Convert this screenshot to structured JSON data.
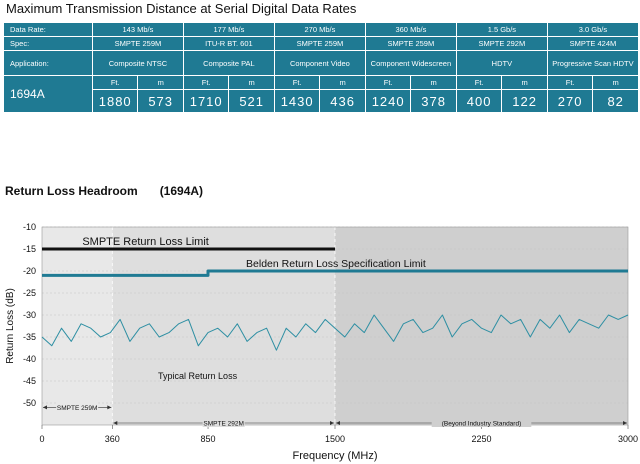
{
  "table": {
    "title": "Maximum Transmission Distance at Serial Digital Data Rates",
    "rows": [
      {
        "label": "Data Rate:",
        "cells": [
          "143 Mb/s",
          "177 Mb/s",
          "270 Mb/s",
          "360 Mb/s",
          "1.5 Gb/s",
          "3.0 Gb/s"
        ]
      },
      {
        "label": "Spec:",
        "cells": [
          "SMPTE 259M",
          "ITU-R BT. 601",
          "SMPTE 259M",
          "SMPTE 259M",
          "SMPTE 292M",
          "SMPTE 424M"
        ]
      },
      {
        "label": "Application:",
        "cells": [
          "Composite NTSC",
          "Composite PAL",
          "Component Video",
          "Component Widescreen",
          "HDTV",
          "Progressive Scan HDTV"
        ]
      }
    ],
    "units_row": [
      "Ft.",
      "m",
      "Ft.",
      "m",
      "Ft.",
      "m",
      "Ft.",
      "m",
      "Ft.",
      "m",
      "Ft.",
      "m"
    ],
    "cable": "1694A",
    "distances": [
      "1880",
      "573",
      "1710",
      "521",
      "1430",
      "436",
      "1240",
      "378",
      "400",
      "122",
      "270",
      "82"
    ]
  },
  "chart_title": {
    "main": "Return Loss Headroom",
    "cable": "(1694A)"
  },
  "chart_data": {
    "type": "line",
    "xlabel": "Frequency (MHz)",
    "ylabel": "Return Loss (dB)",
    "xlim": [
      0,
      3000
    ],
    "ylim": [
      -55,
      -10
    ],
    "xticks": [
      0,
      360,
      850,
      1500,
      2250,
      3000
    ],
    "yticks": [
      -10,
      -15,
      -20,
      -25,
      -30,
      -35,
      -40,
      -45,
      -50
    ],
    "series": [
      {
        "name": "SMPTE Return Loss   Limit",
        "color": "#111111",
        "x": [
          0,
          1500
        ],
        "y": [
          -15,
          -15
        ]
      },
      {
        "name": "Belden Return Loss Specification        Limit",
        "color": "#1f7a93",
        "x": [
          0,
          850,
          850,
          3000
        ],
        "y": [
          -21,
          -21,
          -20,
          -20
        ]
      },
      {
        "name": "Typical Return Loss",
        "color": "#2e8fa3",
        "x": [
          0,
          50,
          100,
          150,
          200,
          250,
          300,
          350,
          400,
          450,
          500,
          550,
          600,
          650,
          700,
          750,
          800,
          850,
          900,
          950,
          1000,
          1050,
          1100,
          1150,
          1200,
          1250,
          1300,
          1350,
          1400,
          1450,
          1500,
          1550,
          1600,
          1650,
          1700,
          1750,
          1800,
          1850,
          1900,
          1950,
          2000,
          2050,
          2100,
          2150,
          2200,
          2250,
          2300,
          2350,
          2400,
          2450,
          2500,
          2550,
          2600,
          2650,
          2700,
          2750,
          2800,
          2850,
          2900,
          2950,
          3000
        ],
        "y": [
          -35,
          -37,
          -33,
          -36,
          -32,
          -33,
          -35,
          -34,
          -31,
          -36,
          -33,
          -32,
          -35,
          -34,
          -32,
          -31,
          -37,
          -34,
          -33,
          -35,
          -32,
          -36,
          -34,
          -33,
          -38,
          -33,
          -35,
          -32,
          -34,
          -31,
          -33,
          -35,
          -32,
          -34,
          -30,
          -33,
          -36,
          -32,
          -31,
          -34,
          -33,
          -30,
          -35,
          -32,
          -31,
          -33,
          -34,
          -30,
          -32,
          -31,
          -35,
          -31,
          -33,
          -30,
          -34,
          -31,
          -32,
          -33,
          -30,
          -31,
          -30
        ]
      }
    ],
    "annotations": [
      "Typical Return Loss"
    ],
    "bands": [
      {
        "label": "SMPTE 259M",
        "from": 0,
        "to": 360
      },
      {
        "label": "SMPTE 292M",
        "from": 360,
        "to": 1500
      },
      {
        "label": "(Beyond Industry Standard)",
        "from": 1500,
        "to": 3000
      }
    ],
    "grid": true
  }
}
